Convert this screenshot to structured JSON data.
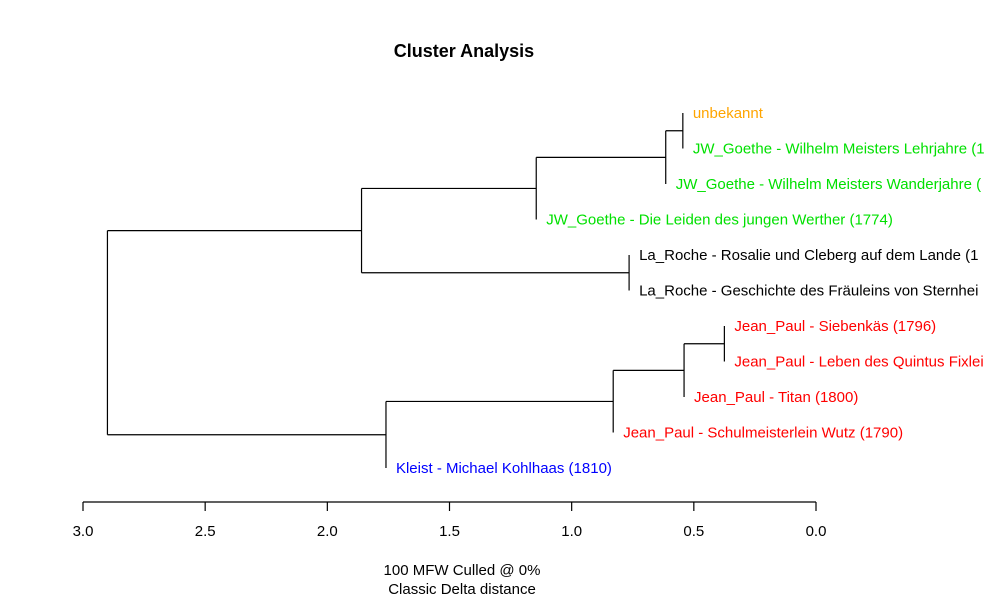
{
  "chart_data": {
    "type": "dendrogram",
    "title": "Cluster Analysis",
    "xlabel_lines": [
      "100 MFW  Culled @ 0%",
      "Classic Delta distance"
    ],
    "xlim": [
      3.0,
      0.0
    ],
    "ticks": [
      "3.0",
      "2.5",
      "2.0",
      "1.5",
      "1.0",
      "0.5",
      "0.0"
    ],
    "tick_values": [
      3.0,
      2.5,
      2.0,
      1.5,
      1.0,
      0.5,
      0.0
    ],
    "colors": {
      "unbekannt": "#FFA500",
      "JW_Goethe": "#00E000",
      "La_Roche": "#000000",
      "Jean_Paul": "#FF0000",
      "Kleist": "#0000FF"
    },
    "leaves": [
      {
        "label": "unbekannt",
        "group": "unbekannt"
      },
      {
        "label": "JW_Goethe - Wilhelm Meisters Lehrjahre (1",
        "group": "JW_Goethe"
      },
      {
        "label": "JW_Goethe - Wilhelm Meisters Wanderjahre (",
        "group": "JW_Goethe"
      },
      {
        "label": "JW_Goethe - Die Leiden des jungen Werther (1774)",
        "group": "JW_Goethe"
      },
      {
        "label": "La_Roche - Rosalie und Cleberg auf dem Lande (1",
        "group": "La_Roche"
      },
      {
        "label": "La_Roche - Geschichte des Fräuleins von Sternhei",
        "group": "La_Roche"
      },
      {
        "label": "Jean_Paul - Siebenkäs (1796)",
        "group": "Jean_Paul"
      },
      {
        "label": "Jean_Paul - Leben des Quintus Fixlei",
        "group": "Jean_Paul"
      },
      {
        "label": "Jean_Paul - Titan (1800)",
        "group": "Jean_Paul"
      },
      {
        "label": "Jean_Paul - Schulmeisterlein Wutz (1790)",
        "group": "Jean_Paul"
      },
      {
        "label": "Kleist - Michael Kohlhaas (1810)",
        "group": "Kleist"
      }
    ],
    "merges": [
      {
        "id": "m1",
        "height": 0.545,
        "children": [
          "L0",
          "L1"
        ]
      },
      {
        "id": "m2",
        "height": 0.615,
        "children": [
          "m1",
          "L2"
        ]
      },
      {
        "id": "m3",
        "height": 1.145,
        "children": [
          "m2",
          "L3"
        ]
      },
      {
        "id": "m4",
        "height": 0.765,
        "children": [
          "L4",
          "L5"
        ]
      },
      {
        "id": "m5",
        "height": 1.86,
        "children": [
          "m3",
          "m4"
        ]
      },
      {
        "id": "m6",
        "height": 0.375,
        "children": [
          "L6",
          "L7"
        ]
      },
      {
        "id": "m7",
        "height": 0.54,
        "children": [
          "m6",
          "L8"
        ]
      },
      {
        "id": "m8",
        "height": 0.83,
        "children": [
          "m7",
          "L9"
        ]
      },
      {
        "id": "m9",
        "height": 1.76,
        "children": [
          "m8",
          "L10"
        ]
      },
      {
        "id": "m10",
        "height": 2.9,
        "children": [
          "m5",
          "m9"
        ]
      }
    ]
  }
}
